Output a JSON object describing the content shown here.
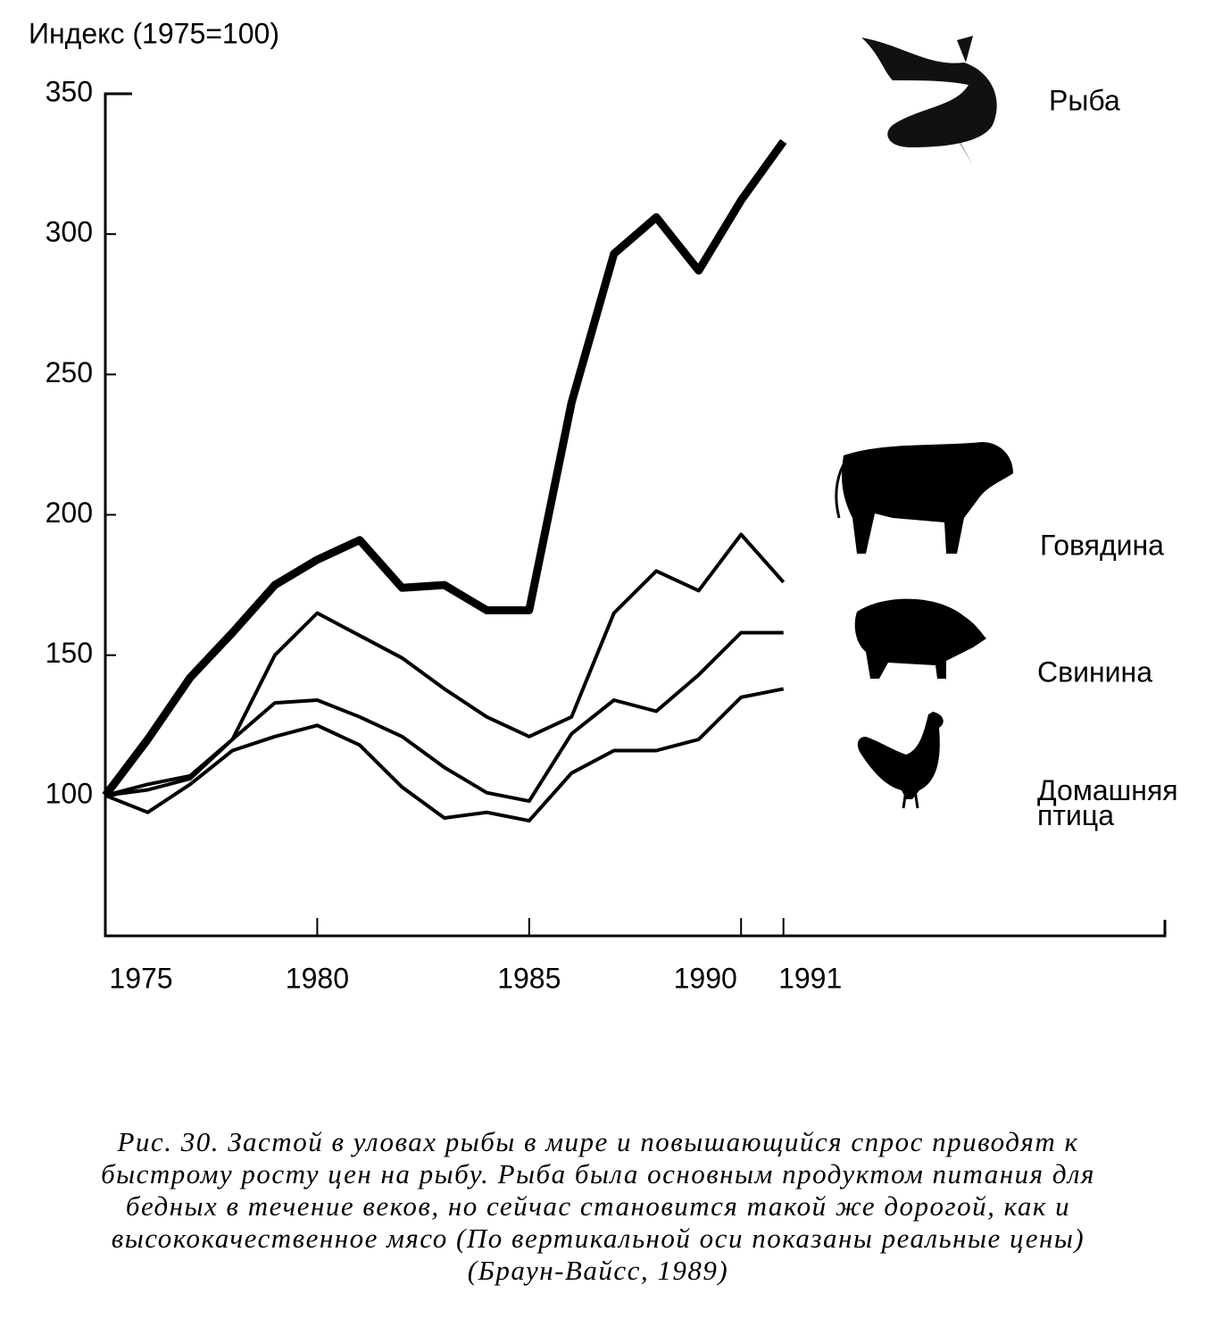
{
  "chart_data": {
    "type": "line",
    "title": "Индекс  (1975=100)",
    "x": [
      1975,
      1976,
      1977,
      1978,
      1979,
      1980,
      1981,
      1982,
      1983,
      1984,
      1985,
      1986,
      1987,
      1988,
      1989,
      1990,
      1991
    ],
    "series": [
      {
        "name": "Рыба",
        "color": "#000",
        "values": [
          100,
          120,
          142,
          158,
          175,
          184,
          191,
          174,
          175,
          166,
          166,
          240,
          293,
          306,
          287,
          312,
          333
        ]
      },
      {
        "name": "Говядина",
        "color": "#000",
        "values": [
          100,
          104,
          107,
          120,
          150,
          165,
          157,
          149,
          138,
          128,
          121,
          128,
          165,
          180,
          173,
          193,
          176
        ]
      },
      {
        "name": "Свинина",
        "color": "#000",
        "values": [
          100,
          102,
          106,
          120,
          133,
          134,
          128,
          121,
          110,
          101,
          98,
          122,
          134,
          130,
          143,
          158,
          158
        ]
      },
      {
        "name": "Домашняя птица",
        "color": "#000",
        "values": [
          100,
          94,
          104,
          116,
          121,
          125,
          118,
          103,
          92,
          94,
          91,
          108,
          116,
          116,
          120,
          135,
          138
        ]
      }
    ],
    "xlim": [
      1975,
      2000
    ],
    "xticks": [
      1975,
      1980,
      1985,
      1990,
      1991
    ],
    "ylim": [
      50,
      350
    ],
    "yticks": [
      100,
      150,
      200,
      250,
      300,
      350
    ],
    "grid": false,
    "caption": [
      "Рис. 30. Застой в уловах рыбы в мире и повышающийся спрос приводят к",
      "быстрому росту цен на рыбу. Рыба была основным продуктом питания для",
      "бедных в течение веков, но сейчас становится такой же дорогой, как и",
      "высококачественное мясо (По вертикальной оси показаны реальные цены)",
      "(Браун-Вайсс, 1989)"
    ]
  }
}
